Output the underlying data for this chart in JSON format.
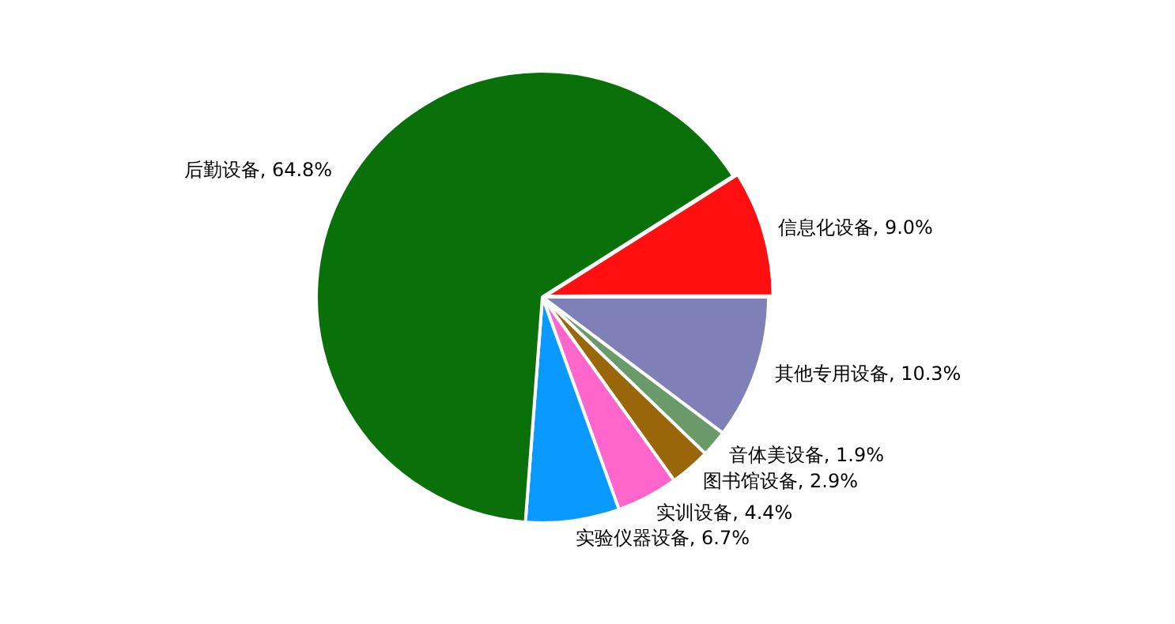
{
  "chart_data": {
    "type": "pie",
    "categories": [
      "信息化设备, 9.0%",
      "其他专用设备, 10.3%",
      "音体美设备, 1.9%",
      "图书馆设备, 2.9%",
      "实训设备, 4.4%",
      "实验仪器设备, 6.7%",
      "后勤设备, 64.8%"
    ],
    "values": [
      9.0,
      10.3,
      1.9,
      2.9,
      4.4,
      6.7,
      64.8
    ],
    "colors": [
      "#ff0f0f",
      "#8080b8",
      "#6a9a6a",
      "#9a660a",
      "#ff66cc",
      "#0a9aff",
      "#0a700a"
    ],
    "legend": false
  }
}
